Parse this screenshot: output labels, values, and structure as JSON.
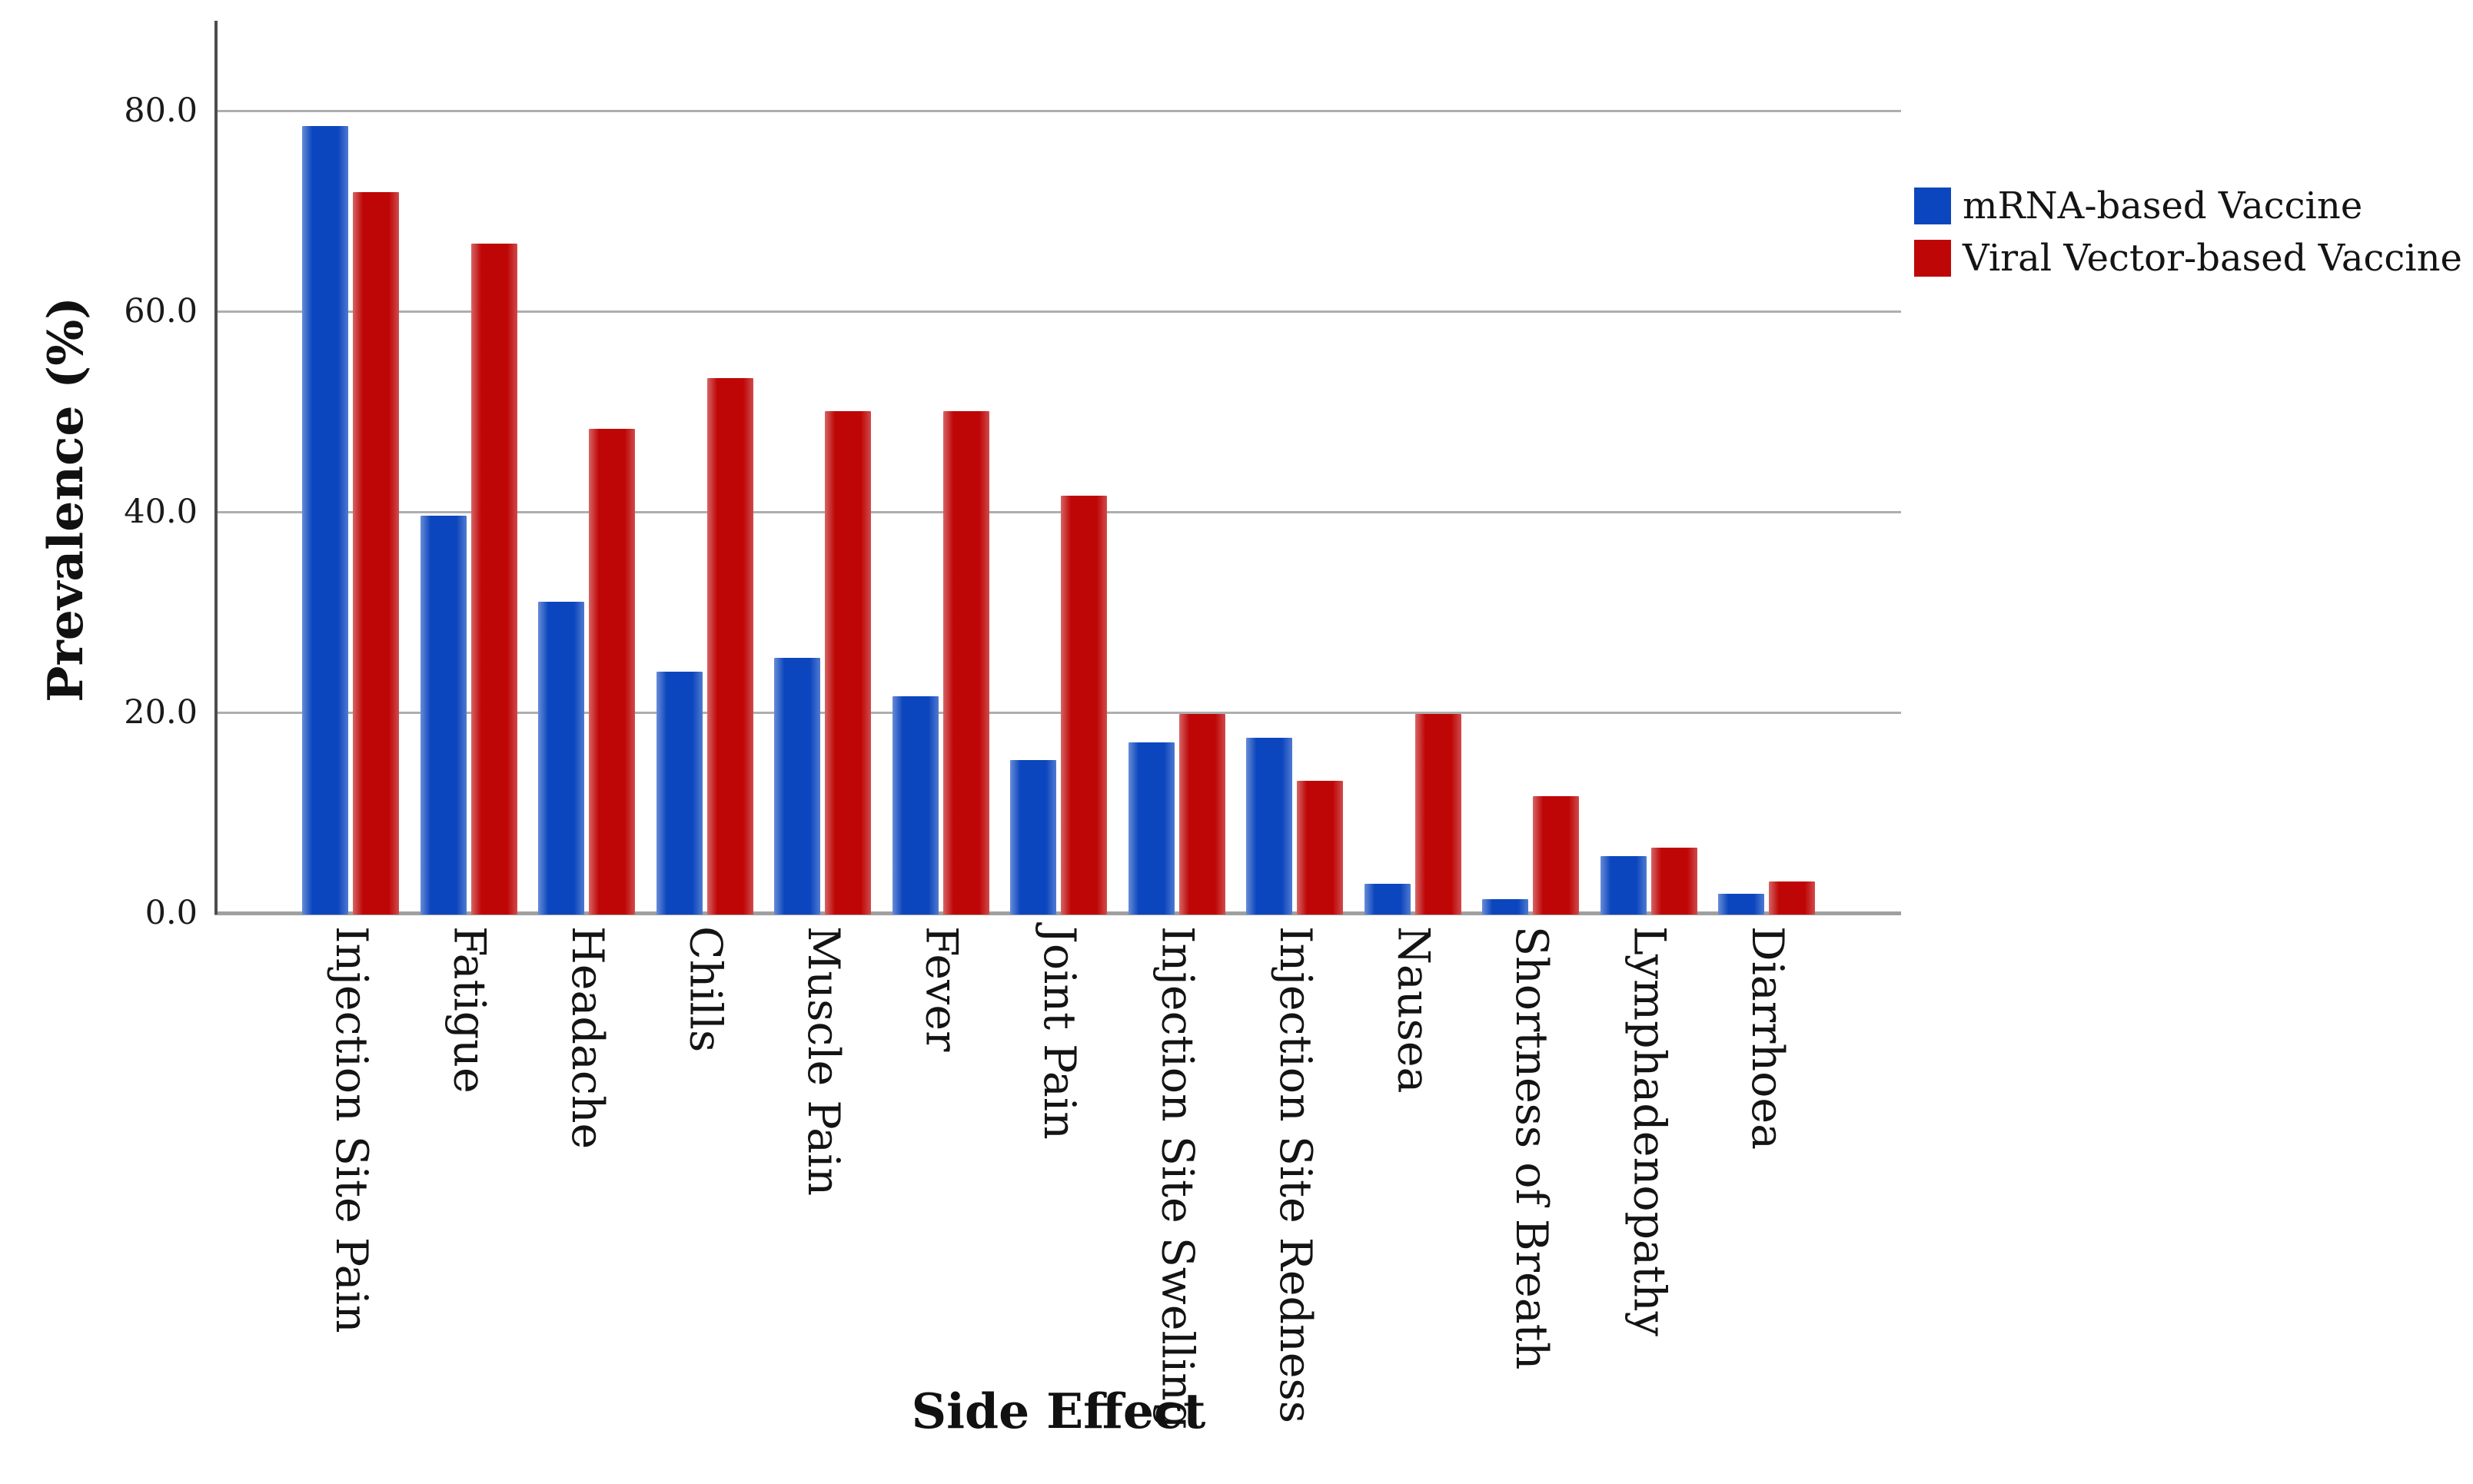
{
  "figure": {
    "y_axis": {
      "title": "Prevalence (%)",
      "ticks": [
        {
          "label": "80.0",
          "value": 80
        },
        {
          "label": "60.0",
          "value": 60
        },
        {
          "label": "40.0",
          "value": 40
        },
        {
          "label": "20.0",
          "value": 20
        },
        {
          "label": "0.0",
          "value": 0
        }
      ]
    },
    "x_axis": {
      "title": "Side Effect"
    },
    "legend": {
      "items": [
        {
          "label": "mRNA-based Vaccine",
          "color": "#0C46BE"
        },
        {
          "label": "Viral Vector-based Vaccine",
          "color": "#BE0606"
        }
      ]
    },
    "colors": {
      "mrna_blue": "#0C46BE",
      "vector_red": "#BE0606",
      "gridline": "#aeaeae",
      "y_axis_line": "#4d4d4d",
      "baseline": "#a0a0a0"
    }
  },
  "chart_data": {
    "type": "bar",
    "title": "",
    "xlabel": "Side Effect",
    "ylabel": "Prevalence (%)",
    "ylim": [
      0,
      89
    ],
    "grid": true,
    "gridline_values": [
      20,
      40,
      60,
      80
    ],
    "legend_position": "top-right",
    "categories": [
      "Injection Site Pain",
      "Fatigue",
      "Headache",
      "Chills",
      "Muscle Pain",
      "Fever",
      "Joint Pain",
      "Injection Site Swelling",
      "Injection Site Redness",
      "Nausea",
      "Shortness of Breath",
      "Lymphadenopathy",
      "Diarrhoea"
    ],
    "series": [
      {
        "name": "mRNA-based Vaccine",
        "color": "#0C46BE",
        "values": [
          78.6,
          39.8,
          31.2,
          24.2,
          25.6,
          21.8,
          15.4,
          17.2,
          17.6,
          3.1,
          1.5,
          5.8,
          2.1
        ]
      },
      {
        "name": "Viral Vector-based Vaccine",
        "color": "#BE0606",
        "values": [
          72.0,
          66.9,
          48.4,
          53.5,
          50.2,
          50.2,
          41.8,
          20.0,
          13.3,
          20.0,
          11.8,
          6.7,
          3.3
        ]
      }
    ]
  }
}
